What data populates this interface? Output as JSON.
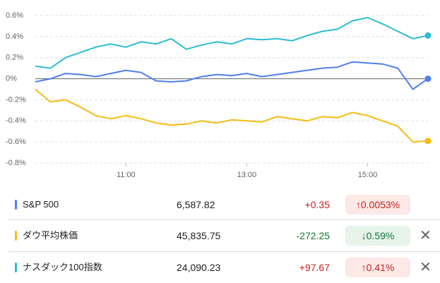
{
  "chart_data": {
    "type": "line",
    "x": [
      9.5,
      9.75,
      10,
      10.25,
      10.5,
      10.75,
      11,
      11.25,
      11.5,
      11.75,
      12,
      12.25,
      12.5,
      12.75,
      13,
      13.25,
      13.5,
      13.75,
      14,
      14.25,
      14.5,
      14.75,
      15,
      15.25,
      15.5,
      15.75,
      16
    ],
    "xlim": [
      9.5,
      16
    ],
    "xticks": [
      {
        "value": 11,
        "label": "11:00"
      },
      {
        "value": 13,
        "label": "13:00"
      },
      {
        "value": 15,
        "label": "15:00"
      }
    ],
    "ylim": [
      -0.8,
      0.6
    ],
    "yticks": [
      {
        "value": -0.8,
        "label": "-0.8%"
      },
      {
        "value": -0.6,
        "label": "-0.6%"
      },
      {
        "value": -0.4,
        "label": "-0.4%"
      },
      {
        "value": -0.2,
        "label": "-0.2%"
      },
      {
        "value": 0,
        "label": "0%"
      },
      {
        "value": 0.2,
        "label": "0.2%"
      },
      {
        "value": 0.4,
        "label": "0.4%"
      },
      {
        "value": 0.6,
        "label": "0.6%"
      }
    ],
    "grid": true,
    "series": [
      {
        "name": "S&P 500",
        "color": "#4f7ff0",
        "values": [
          -0.03,
          0.0,
          0.05,
          0.04,
          0.02,
          0.05,
          0.08,
          0.06,
          -0.02,
          -0.03,
          -0.02,
          0.02,
          0.04,
          0.03,
          0.05,
          0.02,
          0.04,
          0.06,
          0.08,
          0.1,
          0.11,
          0.16,
          0.15,
          0.14,
          0.1,
          -0.1,
          0.0
        ]
      },
      {
        "name": "ダウ平均株価",
        "color": "#f5bb12",
        "values": [
          -0.1,
          -0.22,
          -0.2,
          -0.27,
          -0.35,
          -0.38,
          -0.35,
          -0.38,
          -0.42,
          -0.44,
          -0.43,
          -0.4,
          -0.42,
          -0.39,
          -0.4,
          -0.41,
          -0.36,
          -0.38,
          -0.4,
          -0.36,
          -0.37,
          -0.32,
          -0.35,
          -0.4,
          -0.45,
          -0.6,
          -0.59
        ]
      },
      {
        "name": "ナスダック100指数",
        "color": "#2bbcd4",
        "values": [
          0.12,
          0.1,
          0.2,
          0.25,
          0.3,
          0.33,
          0.3,
          0.35,
          0.33,
          0.38,
          0.28,
          0.32,
          0.35,
          0.33,
          0.38,
          0.37,
          0.38,
          0.36,
          0.41,
          0.45,
          0.47,
          0.55,
          0.58,
          0.52,
          0.45,
          0.38,
          0.41
        ]
      }
    ]
  },
  "table": {
    "rows": [
      {
        "price": "6,587.82",
        "change": "+0.35",
        "percent": "0.0053%",
        "direction": "up",
        "removable": false
      },
      {
        "price": "45,835.75",
        "change": "-272.25",
        "percent": "0.59%",
        "direction": "down",
        "removable": true
      },
      {
        "price": "24,090.23",
        "change": "+97.67",
        "percent": "0.41%",
        "direction": "up",
        "removable": true
      }
    ]
  }
}
